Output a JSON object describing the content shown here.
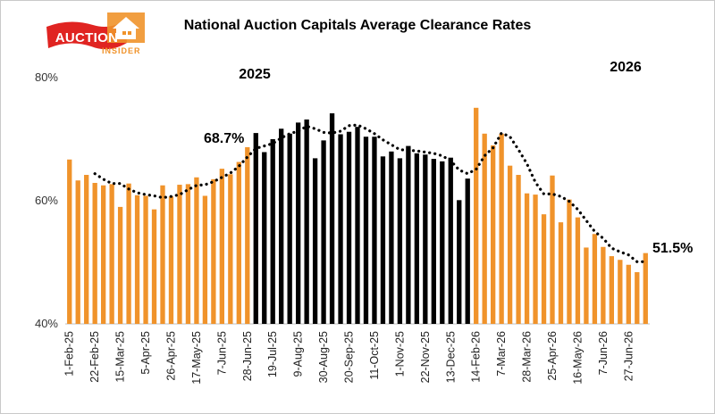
{
  "logo": {
    "word": "AUCTION",
    "sub": "INSIDER"
  },
  "colors": {
    "orange": "#f0932b",
    "black": "#000000",
    "logo_red": "#e02421"
  },
  "chart_data": {
    "type": "bar",
    "title": "National Auction Capitals Average Clearance Rates",
    "ylim": [
      40,
      80
    ],
    "y_ticks": [
      "40%",
      "60%",
      "80%"
    ],
    "y_tick_values": [
      40,
      60,
      80
    ],
    "grid": false,
    "x_tick_labels": [
      "1-Feb-25",
      "22-Feb-25",
      "15-Mar-25",
      "5-Apr-25",
      "26-Apr-25",
      "17-May-25",
      "7-Jun-25",
      "28-Jun-25",
      "19-Jul-25",
      "9-Aug-25",
      "30-Aug-25",
      "20-Sep-25",
      "11-Oct-25",
      "1-Nov-25",
      "22-Nov-25",
      "13-Dec-25",
      "14-Feb-26",
      "7-Mar-26",
      "28-Mar-26",
      "25-Apr-26",
      "16-May-26",
      "7-Jun-26",
      "27-Jun-26"
    ],
    "x_tick_every": 3,
    "year_labels": [
      "2025",
      "2026"
    ],
    "annotations": {
      "first": "68.7%",
      "last": "51.5%"
    },
    "series": [
      {
        "type": "bar",
        "values": [
          66.7,
          63.3,
          64.2,
          62.9,
          62.5,
          62.7,
          59.0,
          62.8,
          60.9,
          60.8,
          58.6,
          62.5,
          60.7,
          62.6,
          62.7,
          63.8,
          60.8,
          63.5,
          65.2,
          64.3,
          66.3,
          68.7,
          71.0,
          67.9,
          70.0,
          71.7,
          70.9,
          72.7,
          73.2,
          66.9,
          69.8,
          74.2,
          70.8,
          71.2,
          72.0,
          70.4,
          70.4,
          67.2,
          68.0,
          66.9,
          68.9,
          67.7,
          67.5,
          66.8,
          66.4,
          67.0,
          60.1,
          63.6,
          75.1,
          70.9,
          69.0,
          70.9,
          65.7,
          64.2,
          61.2,
          61.0,
          57.8,
          64.1,
          56.5,
          60.2,
          57.3,
          52.4,
          54.6,
          52.5,
          51.0,
          50.4,
          49.6,
          48.4,
          51.5
        ],
        "colors_by_index": {
          "orange_ranges": [
            [
              0,
              21
            ],
            [
              48,
              68
            ]
          ],
          "black_ranges": [
            [
              22,
              47
            ]
          ]
        }
      },
      {
        "type": "line",
        "style": "dotted",
        "values": [
          null,
          null,
          null,
          64.4,
          63.5,
          62.8,
          62.8,
          61.9,
          61.3,
          61.0,
          60.8,
          60.5,
          60.7,
          61.0,
          61.8,
          62.5,
          62.6,
          63.1,
          63.8,
          64.5,
          65.6,
          67.1,
          68.5,
          68.9,
          69.3,
          70.2,
          70.9,
          71.3,
          72.1,
          71.7,
          71.1,
          71.0,
          71.3,
          72.2,
          72.3,
          71.7,
          70.9,
          69.9,
          69.1,
          68.3,
          68.2,
          68.1,
          67.9,
          67.7,
          67.3,
          66.5,
          65.0,
          64.4,
          65.1,
          67.3,
          68.6,
          71.0,
          70.4,
          68.3,
          66.0,
          63.0,
          61.1,
          61.1,
          60.7,
          59.9,
          58.6,
          56.8,
          55.0,
          53.9,
          52.3,
          51.7,
          51.2,
          50.1,
          50.1
        ]
      }
    ]
  }
}
